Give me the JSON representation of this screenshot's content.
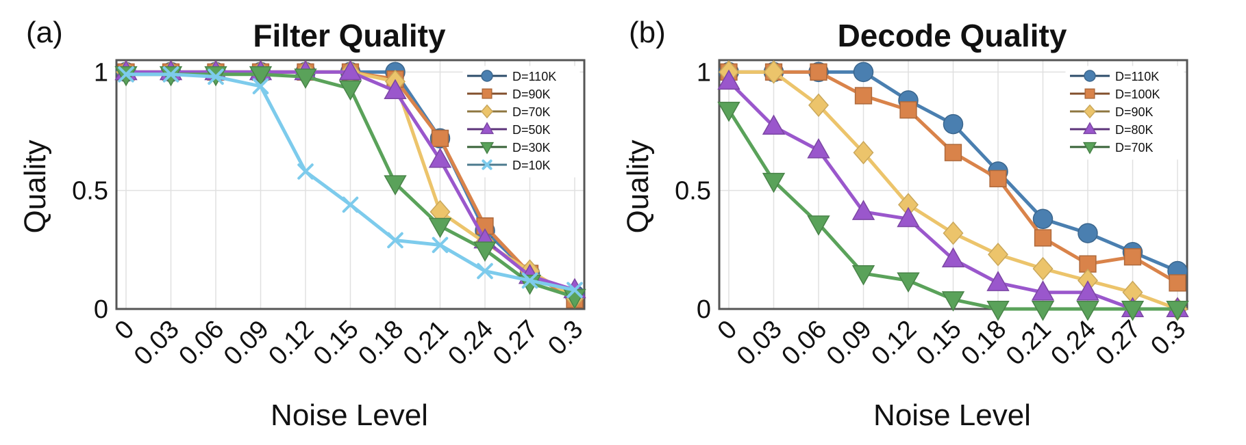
{
  "chart_data": [
    {
      "type": "line",
      "panel_label": "(a)",
      "title": "Filter Quality",
      "xlabel": "Noise Level",
      "ylabel": "Quality",
      "categories": [
        "0",
        "0.03",
        "0.06",
        "0.09",
        "0.12",
        "0.15",
        "0.18",
        "0.21",
        "0.24",
        "0.27",
        "0.3"
      ],
      "ylim": [
        0,
        1.05
      ],
      "yticks": [
        {
          "value": 0,
          "label": "0"
        },
        {
          "value": 0.5,
          "label": "0.5"
        },
        {
          "value": 1,
          "label": "1"
        }
      ],
      "grid": true,
      "legend_position": "top-right",
      "series": [
        {
          "name": "D=110K",
          "marker": "circle",
          "color": "#4a7fb0",
          "values": [
            1.0,
            1.0,
            1.0,
            1.0,
            1.0,
            1.0,
            1.0,
            0.72,
            0.33,
            0.15,
            0.06
          ]
        },
        {
          "name": "D=90K",
          "marker": "square",
          "color": "#d9834a",
          "values": [
            1.0,
            1.0,
            1.0,
            1.0,
            1.0,
            1.0,
            0.97,
            0.72,
            0.35,
            0.15,
            0.04
          ]
        },
        {
          "name": "D=70K",
          "marker": "diamond",
          "color": "#ecc46b",
          "values": [
            1.0,
            1.0,
            1.0,
            1.0,
            1.0,
            1.0,
            0.96,
            0.41,
            0.28,
            0.16,
            0.05
          ]
        },
        {
          "name": "D=50K",
          "marker": "triangle-up",
          "color": "#9a57cc",
          "values": [
            1.0,
            1.0,
            1.0,
            1.0,
            1.0,
            1.0,
            0.92,
            0.63,
            0.29,
            0.14,
            0.08
          ]
        },
        {
          "name": "D=30K",
          "marker": "triangle-down",
          "color": "#5aa25a",
          "values": [
            0.99,
            0.99,
            0.99,
            0.99,
            0.98,
            0.93,
            0.53,
            0.35,
            0.25,
            0.11,
            0.05
          ]
        },
        {
          "name": "D=10K",
          "marker": "x",
          "color": "#7dcbec",
          "values": [
            0.99,
            0.99,
            0.98,
            0.94,
            0.58,
            0.44,
            0.29,
            0.27,
            0.16,
            0.12,
            0.08
          ]
        }
      ]
    },
    {
      "type": "line",
      "panel_label": "(b)",
      "title": "Decode Quality",
      "xlabel": "Noise Level",
      "ylabel": "Quality",
      "categories": [
        "0",
        "0.03",
        "0.06",
        "0.09",
        "0.12",
        "0.15",
        "0.18",
        "0.21",
        "0.24",
        "0.27",
        "0.3"
      ],
      "ylim": [
        0,
        1.05
      ],
      "yticks": [
        {
          "value": 0,
          "label": "0"
        },
        {
          "value": 0.5,
          "label": "0.5"
        },
        {
          "value": 1,
          "label": "1"
        }
      ],
      "grid": true,
      "legend_position": "top-right",
      "series": [
        {
          "name": "D=110K",
          "marker": "circle",
          "color": "#4a7fb0",
          "values": [
            1.0,
            1.0,
            1.0,
            1.0,
            0.88,
            0.78,
            0.58,
            0.38,
            0.32,
            0.24,
            0.16
          ]
        },
        {
          "name": "D=100K",
          "marker": "square",
          "color": "#d9834a",
          "values": [
            1.0,
            1.0,
            1.0,
            0.9,
            0.84,
            0.66,
            0.55,
            0.3,
            0.19,
            0.22,
            0.11
          ]
        },
        {
          "name": "D=90K",
          "marker": "diamond",
          "color": "#ecc46b",
          "values": [
            1.0,
            1.0,
            0.86,
            0.66,
            0.44,
            0.32,
            0.23,
            0.17,
            0.12,
            0.07,
            0.0
          ]
        },
        {
          "name": "D=80K",
          "marker": "triangle-up",
          "color": "#9a57cc",
          "values": [
            0.96,
            0.77,
            0.67,
            0.41,
            0.38,
            0.21,
            0.11,
            0.07,
            0.07,
            0.0,
            0.0
          ]
        },
        {
          "name": "D=70K",
          "marker": "triangle-down",
          "color": "#5aa25a",
          "values": [
            0.84,
            0.54,
            0.36,
            0.15,
            0.12,
            0.04,
            0.0,
            0.0,
            0.0,
            0.0,
            0.0
          ]
        }
      ]
    }
  ]
}
